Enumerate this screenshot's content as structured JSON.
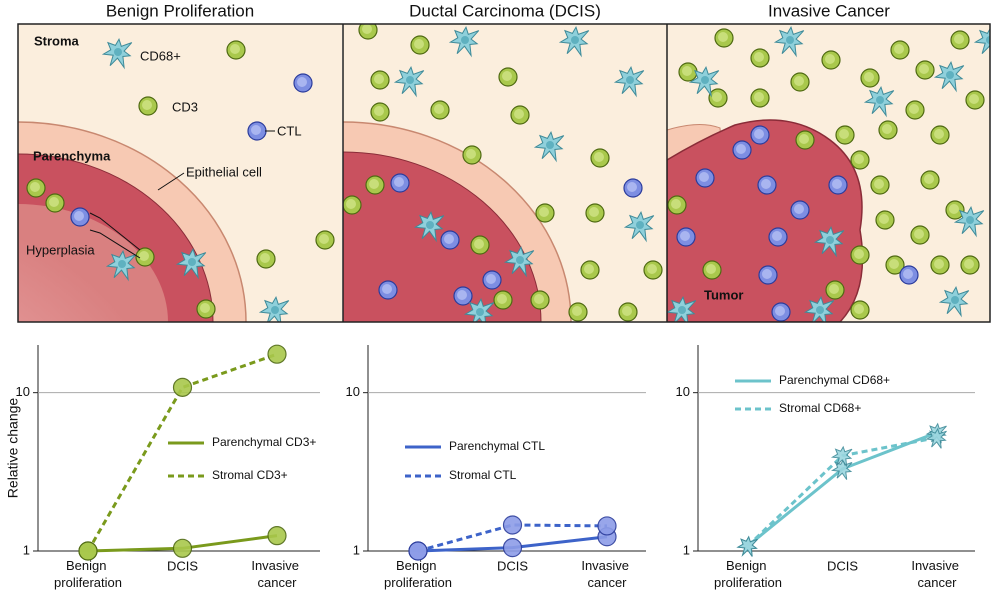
{
  "illustration": {
    "labels": {
      "stroma": "Stroma",
      "cd68": "CD68+",
      "cd3": "CD3",
      "ctl": "CTL",
      "parenchyma": "Parenchyma",
      "epithelial": "Epithelial cell",
      "hyperplasia": "Hyperplasia",
      "tumor": "Tumor"
    }
  },
  "chart_data": [
    {
      "type": "line",
      "title": "Benign Proliferation",
      "y_label": "Relative change",
      "log_scale": true,
      "categories": [
        "Benign proliferation",
        "DCIS",
        "Invasive cancer"
      ],
      "ylim": [
        1,
        20
      ],
      "yticks": [
        1,
        10
      ],
      "grid": true,
      "legend": "center right",
      "marker": "circle",
      "series": [
        {
          "name": "Parenchymal CD3+",
          "color": "#7a9a1c",
          "linestyle": "solid",
          "values": [
            1,
            1.04,
            1.25
          ]
        },
        {
          "name": "Stromal CD3+",
          "color": "#7a9a1c",
          "linestyle": "dashed",
          "values": [
            1,
            10.8,
            17.5
          ]
        }
      ]
    },
    {
      "type": "line",
      "title": "Ductal Carcinoma (DCIS)",
      "log_scale": true,
      "categories": [
        "Benign proliferation",
        "DCIS",
        "Invasive cancer"
      ],
      "ylim": [
        1,
        20
      ],
      "yticks": [
        1,
        10
      ],
      "grid": true,
      "legend": "center left",
      "marker": "circle",
      "series": [
        {
          "name": "Parenchymal CTL",
          "color": "#3d63c9",
          "linestyle": "solid",
          "values": [
            1,
            1.05,
            1.23
          ]
        },
        {
          "name": "Stromal CTL",
          "color": "#3d63c9",
          "linestyle": "dashed",
          "values": [
            1,
            1.46,
            1.44
          ]
        }
      ]
    },
    {
      "type": "line",
      "title": "Invasive Cancer",
      "log_scale": true,
      "categories": [
        "Benign proliferation",
        "DCIS",
        "Invasive cancer"
      ],
      "ylim": [
        1,
        20
      ],
      "yticks": [
        1,
        10
      ],
      "grid": true,
      "legend": "upper left",
      "marker": "macrophage",
      "series": [
        {
          "name": "Parenchymal CD68+",
          "color": "#6cc3cb",
          "linestyle": "solid",
          "values": [
            1.08,
            3.3,
            5.6
          ]
        },
        {
          "name": "Stromal CD68+",
          "color": "#6cc3cb",
          "linestyle": "dashed",
          "values": [
            1.08,
            4.0,
            5.2
          ]
        }
      ]
    }
  ]
}
